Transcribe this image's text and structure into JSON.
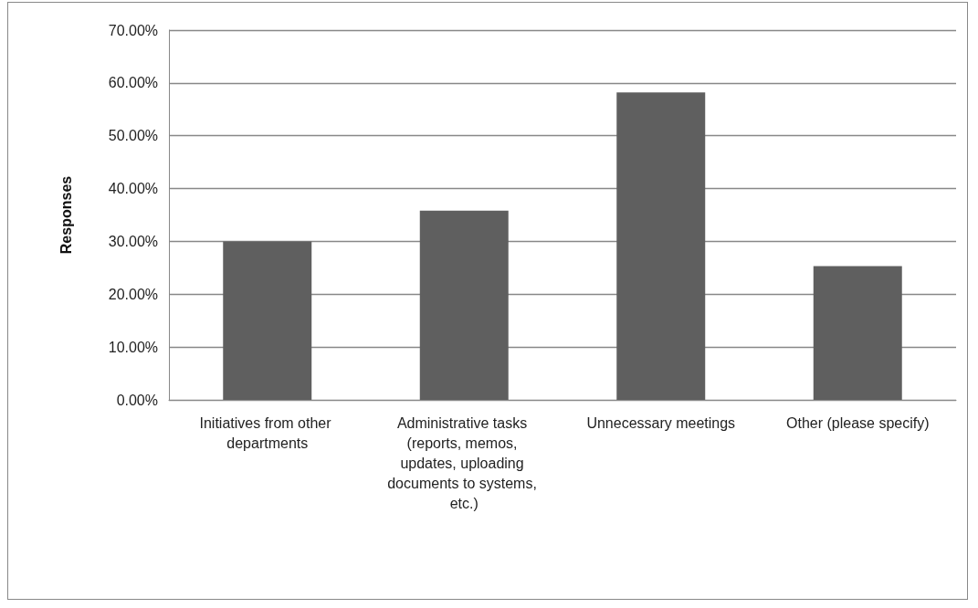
{
  "chart_data": {
    "type": "bar",
    "ylabel": "Responses",
    "categories": [
      "Initiatives from other departments",
      "Administrative tasks (reports, memos, updates, uploading documents to systems, etc.)",
      "Unnecessary meetings",
      "Other (please specify)"
    ],
    "values": [
      30.0,
      35.8,
      58.2,
      25.3
    ],
    "color": "#5f5f5f",
    "ylim": [
      0,
      70
    ],
    "yticks": [
      {
        "value": 0,
        "label": "0.00%"
      },
      {
        "value": 10,
        "label": "10.00%"
      },
      {
        "value": 20,
        "label": "20.00%"
      },
      {
        "value": 30,
        "label": "30.00%"
      },
      {
        "value": 40,
        "label": "40.00%"
      },
      {
        "value": 50,
        "label": "50.00%"
      },
      {
        "value": 60,
        "label": "60.00%"
      },
      {
        "value": 70,
        "label": "70.00%"
      }
    ],
    "grid": "y"
  }
}
